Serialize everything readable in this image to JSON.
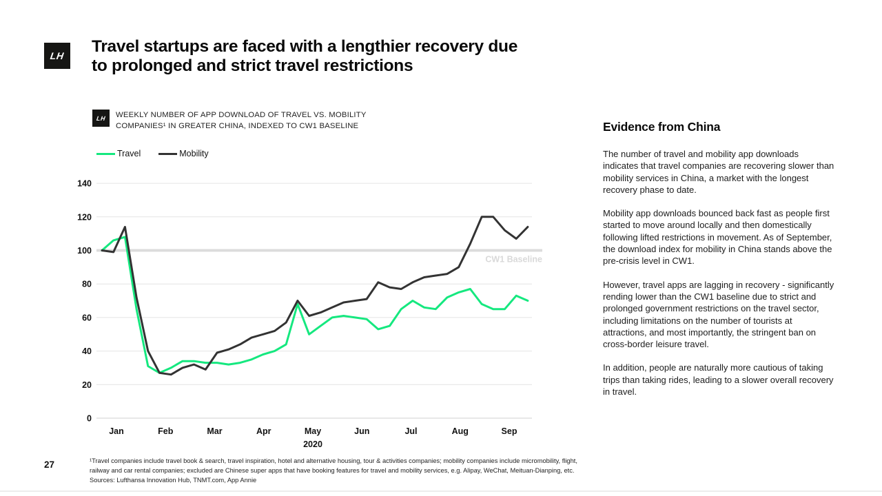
{
  "slide": {
    "logo_glyph": "LH",
    "title_line1": "Travel startups are faced with a lengthier recovery due",
    "title_line2": "to prolonged and strict travel restrictions",
    "page_number": "27",
    "footnote_line1": "¹Travel companies include travel book & search, travel inspiration, hotel and alternative housing, tour & activities companies; mobility companies include micromobility, flight,",
    "footnote_line2": "railway and car rental companies; excluded are Chinese super apps that have booking features for travel and mobility services, e.g. Alipay, WeChat, Meituan-Dianping, etc.",
    "footnote_sources": "Sources: Lufthansa Innovation Hub, TNMT.com, App Annie"
  },
  "chart_header": {
    "logo_glyph": "LH",
    "caption_line1": "WEEKLY NUMBER OF APP DOWNLOAD OF TRAVEL VS. MOBILITY",
    "caption_line2": "COMPANIES¹ IN GREATER CHINA, INDEXED TO CW1 BASELINE"
  },
  "evidence": {
    "heading": "Evidence from China",
    "paragraphs": [
      "The number of travel and mobility app downloads indicates that travel companies are recovering slower than mobility services in China, a market with the longest recovery phase to date.",
      "Mobility app downloads bounced back fast as people first started to move around locally and then domestically following lifted restrictions in movement. As of September, the download index for mobility in China stands above the pre-crisis level in CW1.",
      "However, travel apps are lagging in recovery - significantly rending lower than the CW1 baseline due to strict and prolonged government restrictions on the travel sector, including limitations on the number of tourists at attractions, and most importantly, the stringent ban on cross-border leisure travel.",
      "In addition, people are naturally more cautious of taking trips than taking rides, leading to a slower overall recovery in travel."
    ]
  },
  "chart_data": {
    "type": "line",
    "title": "Weekly number of app download of travel vs. mobility companies in Greater China, indexed to CW1 baseline",
    "x_unit": "weeks from CW1, Jan-Sep 2020",
    "x_tick_labels": [
      "Jan",
      "Feb",
      "Mar",
      "Apr",
      "May",
      "Jun",
      "Jul",
      "Aug",
      "Sep"
    ],
    "xlabel": "2020",
    "ylim": [
      0,
      140
    ],
    "y_ticks": [
      140,
      120,
      100,
      80,
      60,
      40,
      20,
      0
    ],
    "grid": true,
    "legend_position": "top-left",
    "baseline": {
      "value": 100,
      "label": "CW1 Baseline",
      "line_color": "#dcdcdc",
      "label_color": "#d9d9d9"
    },
    "series": [
      {
        "name": "Travel",
        "color": "#15e87f",
        "values": [
          100,
          106,
          108,
          65,
          31,
          27,
          30,
          34,
          34,
          33,
          33,
          32,
          33,
          35,
          38,
          40,
          44,
          68,
          50,
          55,
          60,
          61,
          60,
          59,
          53,
          55,
          65,
          70,
          66,
          65,
          72,
          75,
          77,
          68,
          65,
          65,
          73,
          70
        ]
      },
      {
        "name": "Mobility",
        "color": "#333333",
        "values": [
          100,
          99,
          114,
          72,
          40,
          27,
          26,
          30,
          32,
          29,
          39,
          41,
          44,
          48,
          50,
          52,
          57,
          70,
          61,
          63,
          66,
          69,
          70,
          71,
          81,
          78,
          77,
          81,
          84,
          85,
          86,
          90,
          104,
          120,
          120,
          112,
          107,
          114
        ]
      }
    ]
  },
  "colors": {
    "grid": "#e4e4e4",
    "zero_line": "#cfcfcf",
    "axis_text": "#111111"
  }
}
